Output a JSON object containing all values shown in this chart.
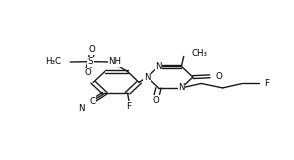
{
  "bg": "#ffffff",
  "lc": "#1a1a1a",
  "lw": 1.0,
  "fs": 6.2,
  "xlim": [
    0,
    10
  ],
  "ylim": [
    0,
    10
  ],
  "figsize": [
    2.94,
    1.6
  ],
  "dpi": 100
}
